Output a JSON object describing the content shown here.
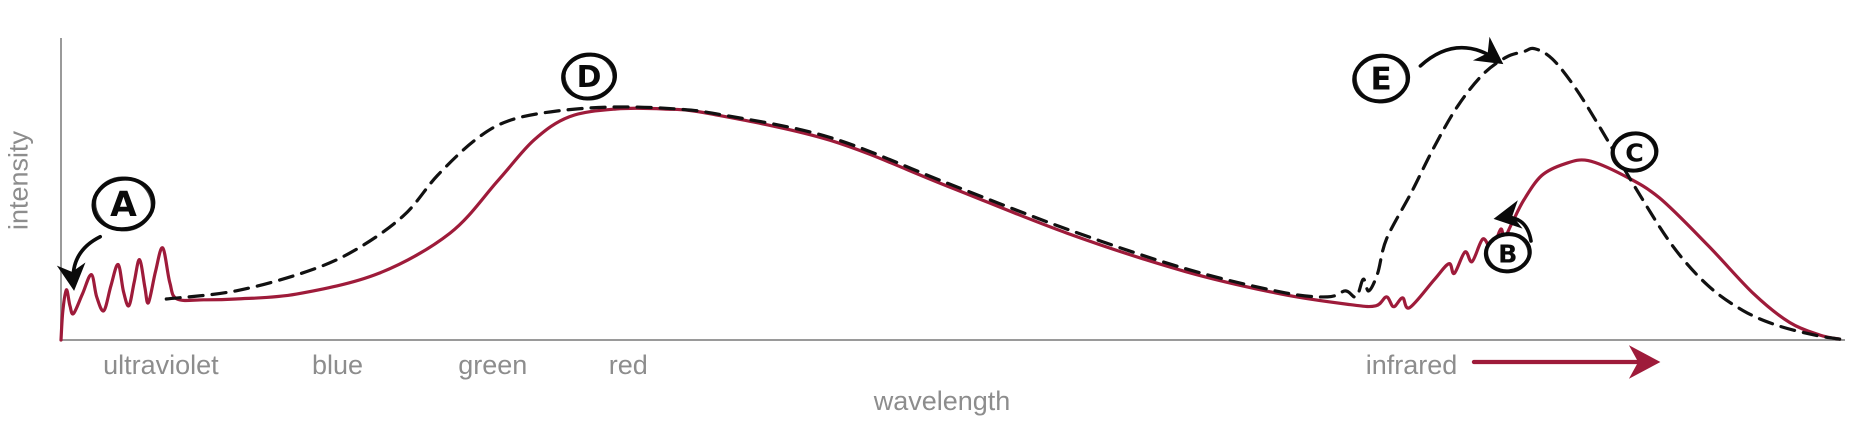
{
  "chart_data": {
    "type": "line",
    "title": "",
    "ylabel": "intensity",
    "xlabel": "wavelength",
    "grid": false,
    "legend": "none",
    "x_ticks": [
      {
        "label": "ultraviolet",
        "x": 0.056
      },
      {
        "label": "blue",
        "x": 0.155
      },
      {
        "label": "green",
        "x": 0.242
      },
      {
        "label": "red",
        "x": 0.318
      },
      {
        "label": "infrared",
        "x": 0.757
      }
    ],
    "infrared_arrow": {
      "x1": 0.792,
      "x2": 0.893,
      "color": "#9e1b3a"
    },
    "axis_color": "#9a9a9a",
    "label_color": "#8d8d8d",
    "series": [
      {
        "name": "solid-curve",
        "color": "#9e1b3a",
        "style": "solid",
        "points": [
          [
            0.0,
            0.0
          ],
          [
            0.001,
            0.1
          ],
          [
            0.003,
            0.175
          ],
          [
            0.005,
            0.12
          ],
          [
            0.007,
            0.092
          ],
          [
            0.012,
            0.16
          ],
          [
            0.017,
            0.228
          ],
          [
            0.02,
            0.15
          ],
          [
            0.024,
            0.102
          ],
          [
            0.028,
            0.19
          ],
          [
            0.032,
            0.263
          ],
          [
            0.035,
            0.17
          ],
          [
            0.038,
            0.119
          ],
          [
            0.041,
            0.2
          ],
          [
            0.044,
            0.28
          ],
          [
            0.047,
            0.185
          ],
          [
            0.049,
            0.13
          ],
          [
            0.053,
            0.24
          ],
          [
            0.057,
            0.321
          ],
          [
            0.061,
            0.2
          ],
          [
            0.065,
            0.143
          ],
          [
            0.08,
            0.14
          ],
          [
            0.098,
            0.143
          ],
          [
            0.132,
            0.16
          ],
          [
            0.178,
            0.232
          ],
          [
            0.218,
            0.372
          ],
          [
            0.245,
            0.556
          ],
          [
            0.265,
            0.696
          ],
          [
            0.285,
            0.778
          ],
          [
            0.311,
            0.805
          ],
          [
            0.338,
            0.805
          ],
          [
            0.364,
            0.788
          ],
          [
            0.431,
            0.696
          ],
          [
            0.497,
            0.536
          ],
          [
            0.564,
            0.372
          ],
          [
            0.63,
            0.239
          ],
          [
            0.684,
            0.16
          ],
          [
            0.723,
            0.123
          ],
          [
            0.737,
            0.119
          ],
          [
            0.743,
            0.15
          ],
          [
            0.747,
            0.116
          ],
          [
            0.752,
            0.147
          ],
          [
            0.756,
            0.113
          ],
          [
            0.77,
            0.212
          ],
          [
            0.778,
            0.266
          ],
          [
            0.781,
            0.232
          ],
          [
            0.787,
            0.307
          ],
          [
            0.791,
            0.273
          ],
          [
            0.797,
            0.352
          ],
          [
            0.802,
            0.317
          ],
          [
            0.807,
            0.386
          ],
          [
            0.809,
            0.355
          ],
          [
            0.813,
            0.403
          ],
          [
            0.82,
            0.488
          ],
          [
            0.83,
            0.573
          ],
          [
            0.843,
            0.614
          ],
          [
            0.856,
            0.625
          ],
          [
            0.876,
            0.573
          ],
          [
            0.896,
            0.495
          ],
          [
            0.923,
            0.331
          ],
          [
            0.949,
            0.16
          ],
          [
            0.969,
            0.061
          ],
          [
            0.986,
            0.017
          ],
          [
            0.997,
            0.003
          ]
        ]
      },
      {
        "name": "dashed-curve",
        "color": "#111111",
        "style": "dashed",
        "points": [
          [
            0.059,
            0.143
          ],
          [
            0.098,
            0.171
          ],
          [
            0.138,
            0.239
          ],
          [
            0.165,
            0.314
          ],
          [
            0.192,
            0.433
          ],
          [
            0.211,
            0.573
          ],
          [
            0.232,
            0.696
          ],
          [
            0.251,
            0.764
          ],
          [
            0.278,
            0.798
          ],
          [
            0.311,
            0.812
          ],
          [
            0.345,
            0.805
          ],
          [
            0.37,
            0.785
          ],
          [
            0.431,
            0.706
          ],
          [
            0.497,
            0.546
          ],
          [
            0.564,
            0.386
          ],
          [
            0.63,
            0.249
          ],
          [
            0.684,
            0.167
          ],
          [
            0.71,
            0.15
          ],
          [
            0.72,
            0.171
          ],
          [
            0.726,
            0.15
          ],
          [
            0.73,
            0.212
          ],
          [
            0.733,
            0.171
          ],
          [
            0.738,
            0.232
          ],
          [
            0.743,
            0.352
          ],
          [
            0.757,
            0.515
          ],
          [
            0.77,
            0.676
          ],
          [
            0.783,
            0.816
          ],
          [
            0.797,
            0.925
          ],
          [
            0.81,
            0.985
          ],
          [
            0.82,
            1.005
          ],
          [
            0.826,
            1.015
          ],
          [
            0.836,
            0.979
          ],
          [
            0.849,
            0.877
          ],
          [
            0.863,
            0.737
          ],
          [
            0.882,
            0.536
          ],
          [
            0.903,
            0.331
          ],
          [
            0.923,
            0.191
          ],
          [
            0.943,
            0.102
          ],
          [
            0.962,
            0.051
          ],
          [
            0.983,
            0.017
          ],
          [
            0.997,
            0.003
          ]
        ]
      }
    ],
    "annotations": [
      {
        "label": "A",
        "cx": 0.035,
        "cy": 0.474,
        "r": 30,
        "arrow": {
          "from": [
            0.022,
            0.36
          ],
          "to": [
            0.007,
            0.19
          ],
          "bend": 0.35
        }
      },
      {
        "label": "D",
        "cx": 0.296,
        "cy": 0.918,
        "r": 26
      },
      {
        "label": "E",
        "cx": 0.74,
        "cy": 0.911,
        "r": 27,
        "arrow": {
          "from": [
            0.762,
            0.955
          ],
          "to": [
            0.806,
            0.972
          ],
          "bend": -0.4
        }
      },
      {
        "label": "B",
        "cx": 0.811,
        "cy": 0.304,
        "r": 22,
        "arrow": {
          "from": [
            0.824,
            0.345
          ],
          "to": [
            0.806,
            0.425
          ],
          "bend": 0.5
        }
      },
      {
        "label": "C",
        "cx": 0.882,
        "cy": 0.655,
        "r": 22
      }
    ]
  }
}
